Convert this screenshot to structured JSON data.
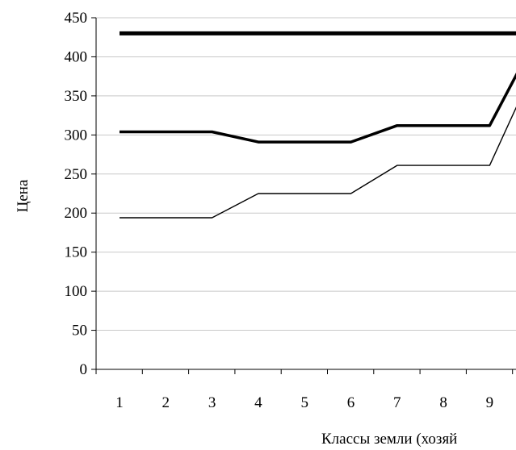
{
  "chart_data": {
    "type": "line",
    "title": "",
    "xlabel": "Классы земли (хозяй",
    "ylabel": "Цена",
    "categories": [
      "1",
      "2",
      "3",
      "4",
      "5",
      "6",
      "7",
      "8",
      "9",
      ""
    ],
    "y_ticks": [
      "0",
      "50",
      "100",
      "150",
      "200",
      "250",
      "300",
      "350",
      "400",
      "450"
    ],
    "ylim": [
      0,
      450
    ],
    "grid": true,
    "series": [
      {
        "style": "extra-thick",
        "points": [
          [
            1,
            430
          ],
          [
            9.65,
            430
          ]
        ]
      },
      {
        "style": "thick",
        "points": [
          [
            1,
            304
          ],
          [
            3,
            304
          ],
          [
            4,
            291
          ],
          [
            6,
            291
          ],
          [
            7,
            312
          ],
          [
            8,
            312
          ],
          [
            9,
            312
          ],
          [
            9.65,
            385
          ]
        ]
      },
      {
        "style": "thin",
        "points": [
          [
            1,
            194
          ],
          [
            3,
            194
          ],
          [
            4,
            225
          ],
          [
            6,
            225
          ],
          [
            7,
            261
          ],
          [
            8,
            261
          ],
          [
            9,
            261
          ],
          [
            9.65,
            345
          ]
        ]
      }
    ]
  }
}
